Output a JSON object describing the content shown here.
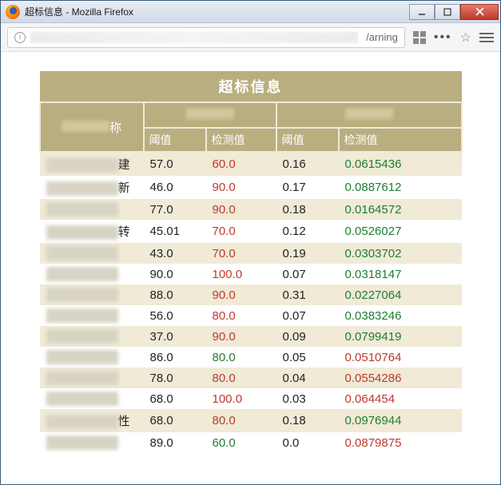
{
  "window": {
    "title": "超标信息 - Mozilla Firefox",
    "url_visible_tail": "/arning"
  },
  "table": {
    "title": "超标信息",
    "group_headers": {
      "name": "称",
      "group1": "",
      "group2": ""
    },
    "sub_headers": {
      "threshold": "阈值",
      "detected": "检测值"
    },
    "rows": [
      {
        "name_frag": "建",
        "v1": "57.0",
        "d1": "60.0",
        "d1c": "red",
        "v2": "0.16",
        "d2": "0.0615436",
        "d2c": "green"
      },
      {
        "name_frag": "新",
        "v1": "46.0",
        "d1": "90.0",
        "d1c": "red",
        "v2": "0.17",
        "d2": "0.0887612",
        "d2c": "green"
      },
      {
        "name_frag": "",
        "v1": "77.0",
        "d1": "90.0",
        "d1c": "red",
        "v2": "0.18",
        "d2": "0.0164572",
        "d2c": "green"
      },
      {
        "name_frag": "转",
        "v1": "45.01",
        "d1": "70.0",
        "d1c": "red",
        "v2": "0.12",
        "d2": "0.0526027",
        "d2c": "green"
      },
      {
        "name_frag": "",
        "v1": "43.0",
        "d1": "70.0",
        "d1c": "red",
        "v2": "0.19",
        "d2": "0.0303702",
        "d2c": "green"
      },
      {
        "name_frag": "",
        "v1": "90.0",
        "d1": "100.0",
        "d1c": "red",
        "v2": "0.07",
        "d2": "0.0318147",
        "d2c": "green"
      },
      {
        "name_frag": "",
        "v1": "88.0",
        "d1": "90.0",
        "d1c": "red",
        "v2": "0.31",
        "d2": "0.0227064",
        "d2c": "green"
      },
      {
        "name_frag": "",
        "v1": "56.0",
        "d1": "80.0",
        "d1c": "red",
        "v2": "0.07",
        "d2": "0.0383246",
        "d2c": "green"
      },
      {
        "name_frag": "",
        "v1": "37.0",
        "d1": "90.0",
        "d1c": "red",
        "v2": "0.09",
        "d2": "0.0799419",
        "d2c": "green"
      },
      {
        "name_frag": "",
        "v1": "86.0",
        "d1": "80.0",
        "d1c": "green",
        "v2": "0.05",
        "d2": "0.0510764",
        "d2c": "red"
      },
      {
        "name_frag": "",
        "v1": "78.0",
        "d1": "80.0",
        "d1c": "red",
        "v2": "0.04",
        "d2": "0.0554286",
        "d2c": "red"
      },
      {
        "name_frag": "",
        "v1": "68.0",
        "d1": "100.0",
        "d1c": "red",
        "v2": "0.03",
        "d2": "0.064454",
        "d2c": "red"
      },
      {
        "name_frag": "性",
        "v1": "68.0",
        "d1": "80.0",
        "d1c": "red",
        "v2": "0.18",
        "d2": "0.0976944",
        "d2c": "green"
      },
      {
        "name_frag": "",
        "v1": "89.0",
        "d1": "60.0",
        "d1c": "green",
        "v2": "0.0",
        "d2": "0.0879875",
        "d2c": "red"
      }
    ]
  },
  "colors": {
    "header_bg": "#b9ae7f",
    "row_alt_bg": "#f0ead6",
    "red": "#c0392b",
    "green": "#1e7e34"
  }
}
